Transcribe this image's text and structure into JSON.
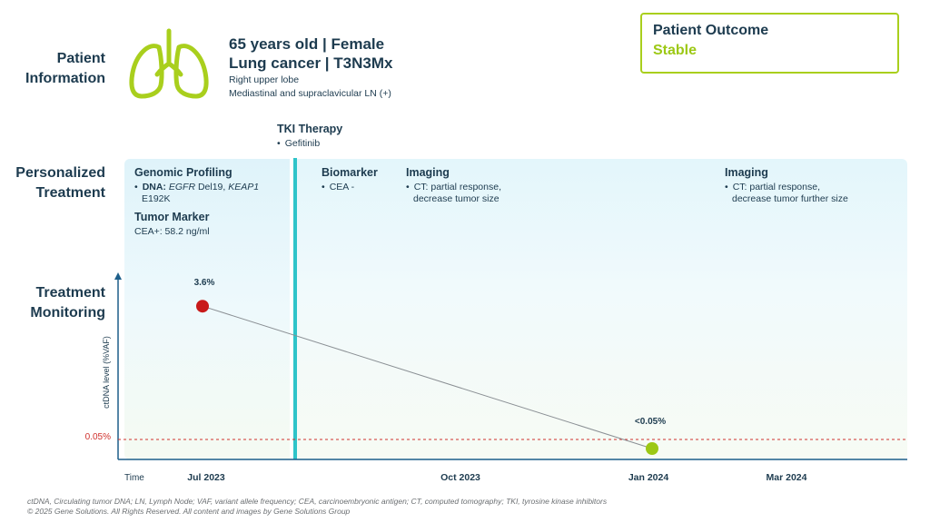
{
  "patient_information": {
    "label_line1": "Patient",
    "label_line2": "Information",
    "icon": "lungs-icon",
    "line1": "65 years old | Female",
    "line2": "Lung cancer | T3N3Mx",
    "line3": "Right upper lobe",
    "line4": "Mediastinal and supraclavicular LN (+)"
  },
  "patient_outcome": {
    "title": "Patient Outcome",
    "value": "Stable"
  },
  "therapy": {
    "title": "TKI Therapy",
    "item": "Gefitinib"
  },
  "personalized_treatment": {
    "label_line1": "Personalized",
    "label_line2": "Treatment",
    "genomic_profiling": {
      "title": "Genomic Profiling",
      "dna_label": "DNA:",
      "gene1": "EGFR",
      "gene1_variant": "Del19,",
      "gene2": "KEAP1",
      "gene2_variant": "E192K"
    },
    "tumor_marker": {
      "title": "Tumor Marker",
      "value": "CEA+: 58.2 ng/ml"
    },
    "biomarker": {
      "title": "Biomarker",
      "item": "CEA -"
    },
    "imaging1": {
      "title": "Imaging",
      "line1": "CT: partial response,",
      "line2": "decrease tumor size"
    },
    "imaging2": {
      "title": "Imaging",
      "line1": "CT: partial response,",
      "line2": "decrease tumor further size"
    }
  },
  "treatment_monitoring": {
    "label_line1": "Treatment",
    "label_line2": "Monitoring"
  },
  "chart_data": {
    "type": "line",
    "ylabel": "ctDNA level (%VAF)",
    "xlabel": "Time",
    "categories": [
      "Jul 2023",
      "Oct 2023",
      "Jan 2024",
      "Mar 2024"
    ],
    "series": [
      {
        "name": "ctDNA",
        "points": [
          {
            "x": "Jul 2023",
            "value": 3.6,
            "label": "3.6%",
            "color": "#c81a1a"
          },
          {
            "x": "Jan 2024",
            "value": 0.0,
            "label": "<0.05%",
            "color": "#9cc814"
          }
        ]
      }
    ],
    "threshold": {
      "value": 0.05,
      "label": "0.05%",
      "color": "#d0312d"
    },
    "ylim": [
      0,
      4.5
    ]
  },
  "colors": {
    "accent_green": "#9cc814",
    "accent_teal": "#2fc4c9",
    "text_navy": "#1d3b4f",
    "red": "#c81a1a"
  },
  "footnote": {
    "line1": "ctDNA, Circulating tumor DNA; LN, Lymph Node; VAF, variant allele frequency; CEA, carcinoembryonic antigen; CT, computed tomography; TKI, tyrosine kinase inhibitors",
    "line2": "© 2025 Gene Solutions. All Rights Reserved. All content and images by Gene Solutions Group"
  }
}
